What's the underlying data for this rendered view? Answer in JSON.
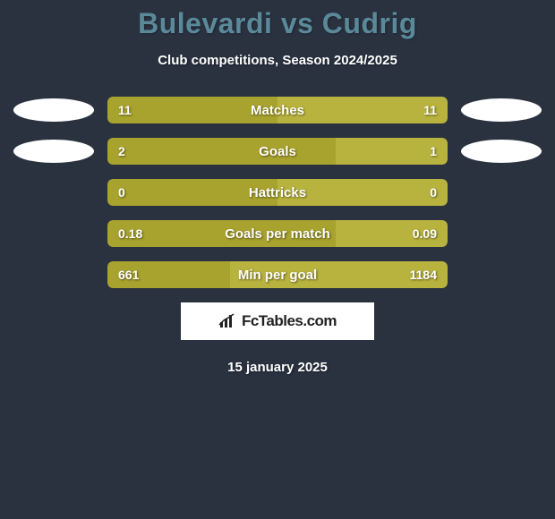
{
  "title": "Bulevardi vs Cudrig",
  "subtitle": "Club competitions, Season 2024/2025",
  "date": "15 january 2025",
  "logo_text": "FcTables.com",
  "colors": {
    "background": "#2a3240",
    "title": "#5a8a9a",
    "text": "#ffffff",
    "left_bar": "#a8a22e",
    "right_bar": "#b8b23e",
    "ellipse": "#ffffff",
    "logo_bg": "#ffffff",
    "logo_text": "#222222"
  },
  "bar_dims": {
    "track_width": 360,
    "height": 30,
    "radius": 6,
    "gap": 16
  },
  "fonts": {
    "title_size": 32,
    "subtitle_size": 15,
    "label_size": 15,
    "value_size": 14,
    "date_size": 15
  },
  "rows": [
    {
      "label": "Matches",
      "left_val": "11",
      "right_val": "11",
      "left_pct": 50,
      "right_pct": 50,
      "show_avatars": true
    },
    {
      "label": "Goals",
      "left_val": "2",
      "right_val": "1",
      "left_pct": 67,
      "right_pct": 33,
      "show_avatars": true
    },
    {
      "label": "Hattricks",
      "left_val": "0",
      "right_val": "0",
      "left_pct": 50,
      "right_pct": 50,
      "show_avatars": false
    },
    {
      "label": "Goals per match",
      "left_val": "0.18",
      "right_val": "0.09",
      "left_pct": 67,
      "right_pct": 33,
      "show_avatars": false
    },
    {
      "label": "Min per goal",
      "left_val": "661",
      "right_val": "1184",
      "left_pct": 36,
      "right_pct": 64,
      "show_avatars": false
    }
  ]
}
